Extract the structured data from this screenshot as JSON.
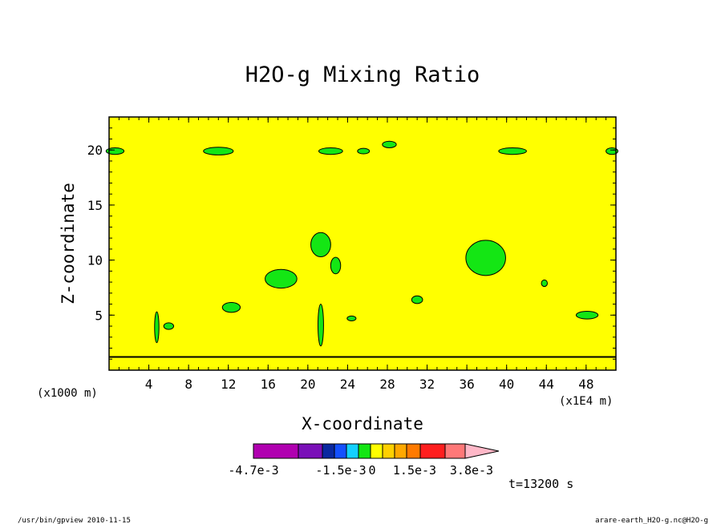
{
  "chart_data": {
    "type": "heatmap",
    "title": "H2O-g Mixing Ratio",
    "xlabel": "X-coordinate",
    "ylabel": "Z-coordinate",
    "x_unit_left": "(x1000 m)",
    "x_unit_right": "(x1E4 m)",
    "xlim": [
      0,
      51
    ],
    "ylim": [
      0,
      23
    ],
    "xticks": [
      4,
      8,
      12,
      16,
      20,
      24,
      28,
      32,
      36,
      40,
      44,
      48
    ],
    "yticks": [
      5,
      10,
      15,
      20
    ],
    "background_color": "#ffff00",
    "baseline_z": 1.2,
    "contour_patches": [
      {
        "cx": 11.0,
        "cy": 19.9,
        "rx": 1.5,
        "ry": 0.35
      },
      {
        "cx": 22.3,
        "cy": 19.9,
        "rx": 1.2,
        "ry": 0.3
      },
      {
        "cx": 25.6,
        "cy": 19.9,
        "rx": 0.6,
        "ry": 0.25
      },
      {
        "cx": 28.2,
        "cy": 20.5,
        "rx": 0.7,
        "ry": 0.3
      },
      {
        "cx": 40.6,
        "cy": 19.9,
        "rx": 1.4,
        "ry": 0.3
      },
      {
        "cx": 0.6,
        "cy": 19.9,
        "rx": 0.9,
        "ry": 0.3
      },
      {
        "cx": 50.6,
        "cy": 19.9,
        "rx": 0.6,
        "ry": 0.3
      },
      {
        "cx": 21.3,
        "cy": 11.4,
        "rx": 1.0,
        "ry": 1.1
      },
      {
        "cx": 22.8,
        "cy": 9.5,
        "rx": 0.5,
        "ry": 0.75
      },
      {
        "cx": 17.3,
        "cy": 8.3,
        "rx": 1.6,
        "ry": 0.85
      },
      {
        "cx": 37.9,
        "cy": 10.2,
        "rx": 2.0,
        "ry": 1.6
      },
      {
        "cx": 12.3,
        "cy": 5.7,
        "rx": 0.9,
        "ry": 0.45
      },
      {
        "cx": 4.8,
        "cy": 3.9,
        "rx": 0.22,
        "ry": 1.4
      },
      {
        "cx": 6.0,
        "cy": 4.0,
        "rx": 0.5,
        "ry": 0.3
      },
      {
        "cx": 21.3,
        "cy": 4.1,
        "rx": 0.28,
        "ry": 1.9
      },
      {
        "cx": 24.4,
        "cy": 4.7,
        "rx": 0.45,
        "ry": 0.22
      },
      {
        "cx": 31.0,
        "cy": 6.4,
        "rx": 0.55,
        "ry": 0.35
      },
      {
        "cx": 43.8,
        "cy": 7.9,
        "rx": 0.3,
        "ry": 0.3
      },
      {
        "cx": 48.1,
        "cy": 5.0,
        "rx": 1.1,
        "ry": 0.35
      }
    ],
    "colorbar": {
      "colors": [
        "#b000b0",
        "#7a10b8",
        "#0a28a0",
        "#1450ff",
        "#14d0ff",
        "#14e614",
        "#ffff00",
        "#ffd000",
        "#ffa800",
        "#ff7a00",
        "#ff1e1e",
        "#ff7878",
        "#ffb8c8"
      ],
      "labels": [
        "-4.7e-3",
        "-1.5e-3",
        "0",
        "1.5e-3",
        "3.8e-3"
      ]
    }
  },
  "time_label": "t=13200 s",
  "footer": {
    "left": "/usr/bin/gpview  2010-11-15",
    "right": "arare-earth_H2O-g.nc@H2O-g"
  }
}
